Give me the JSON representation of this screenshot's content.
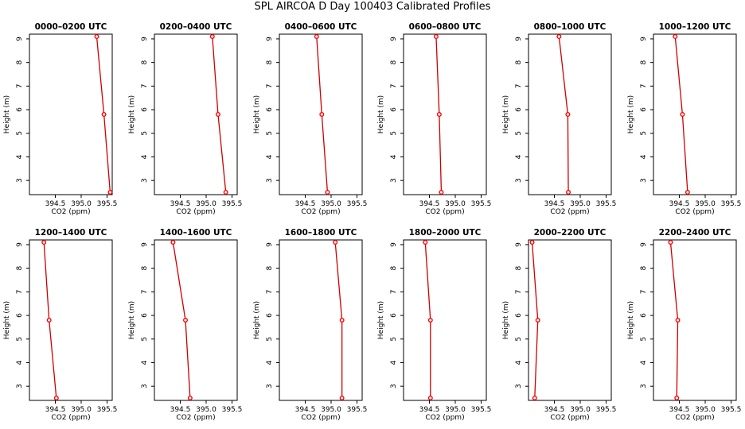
{
  "figure": {
    "title": "SPL AIRCOA D  Day 100403  Calibrated Profiles"
  },
  "colors": {
    "line": "#cc0000",
    "marker": "#ff0000",
    "axis": "#000000"
  },
  "chart_data": [
    {
      "type": "line",
      "title": "0000–0200 UTC",
      "xlabel": "CO2 (ppm)",
      "ylabel": "Height (m)",
      "xlim": [
        394.0,
        395.6
      ],
      "ylim": [
        2.4,
        9.2
      ],
      "xticks": [
        "394.5",
        "395.0",
        "395.5"
      ],
      "yticks": [
        "3",
        "4",
        "5",
        "6",
        "7",
        "8",
        "9"
      ],
      "series": [
        {
          "x": [
            395.3,
            395.44,
            395.56
          ],
          "y": [
            9.1,
            5.8,
            2.5
          ]
        }
      ]
    },
    {
      "type": "line",
      "title": "0200–0400 UTC",
      "xlabel": "CO2 (ppm)",
      "ylabel": "Height (m)",
      "xlim": [
        394.0,
        395.6
      ],
      "ylim": [
        2.4,
        9.2
      ],
      "xticks": [
        "394.5",
        "395.0",
        "395.5"
      ],
      "yticks": [
        "3",
        "4",
        "5",
        "6",
        "7",
        "8",
        "9"
      ],
      "series": [
        {
          "x": [
            395.12,
            395.23,
            395.38
          ],
          "y": [
            9.1,
            5.8,
            2.5
          ]
        }
      ]
    },
    {
      "type": "line",
      "title": "0400–0600 UTC",
      "xlabel": "CO2 (ppm)",
      "ylabel": "Height (m)",
      "xlim": [
        394.0,
        395.6
      ],
      "ylim": [
        2.4,
        9.2
      ],
      "xticks": [
        "394.5",
        "395.0",
        "395.5"
      ],
      "yticks": [
        "3",
        "4",
        "5",
        "6",
        "7",
        "8",
        "9"
      ],
      "series": [
        {
          "x": [
            394.72,
            394.82,
            394.93
          ],
          "y": [
            9.1,
            5.8,
            2.5
          ]
        }
      ]
    },
    {
      "type": "line",
      "title": "0600–0800 UTC",
      "xlabel": "CO2 (ppm)",
      "ylabel": "Height (m)",
      "xlim": [
        394.0,
        395.6
      ],
      "ylim": [
        2.4,
        9.2
      ],
      "xticks": [
        "394.5",
        "395.0",
        "395.5"
      ],
      "yticks": [
        "3",
        "4",
        "5",
        "6",
        "7",
        "8",
        "9"
      ],
      "series": [
        {
          "x": [
            394.63,
            394.69,
            394.73
          ],
          "y": [
            9.1,
            5.8,
            2.5
          ]
        }
      ]
    },
    {
      "type": "line",
      "title": "0800–1000 UTC",
      "xlabel": "CO2 (ppm)",
      "ylabel": "Height (m)",
      "xlim": [
        394.0,
        395.6
      ],
      "ylim": [
        2.4,
        9.2
      ],
      "xticks": [
        "394.5",
        "395.0",
        "395.5"
      ],
      "yticks": [
        "3",
        "4",
        "5",
        "6",
        "7",
        "8",
        "9"
      ],
      "series": [
        {
          "x": [
            394.59,
            394.76,
            394.77
          ],
          "y": [
            9.1,
            5.8,
            2.5
          ]
        }
      ]
    },
    {
      "type": "line",
      "title": "1000–1200 UTC",
      "xlabel": "CO2 (ppm)",
      "ylabel": "Height (m)",
      "xlim": [
        394.0,
        395.6
      ],
      "ylim": [
        2.4,
        9.2
      ],
      "xticks": [
        "394.5",
        "395.0",
        "395.5"
      ],
      "yticks": [
        "3",
        "4",
        "5",
        "6",
        "7",
        "8",
        "9"
      ],
      "series": [
        {
          "x": [
            394.42,
            394.56,
            394.66
          ],
          "y": [
            9.1,
            5.8,
            2.5
          ]
        }
      ]
    },
    {
      "type": "line",
      "title": "1200–1400 UTC",
      "xlabel": "CO2 (ppm)",
      "ylabel": "Height (m)",
      "xlim": [
        394.0,
        395.6
      ],
      "ylim": [
        2.4,
        9.2
      ],
      "xticks": [
        "394.5",
        "395.0",
        "395.5"
      ],
      "yticks": [
        "3",
        "4",
        "5",
        "6",
        "7",
        "8",
        "9"
      ],
      "series": [
        {
          "x": [
            394.28,
            394.38,
            394.52
          ],
          "y": [
            9.1,
            5.8,
            2.5
          ]
        }
      ]
    },
    {
      "type": "line",
      "title": "1400–1600 UTC",
      "xlabel": "CO2 (ppm)",
      "ylabel": "Height (m)",
      "xlim": [
        394.0,
        395.6
      ],
      "ylim": [
        2.4,
        9.2
      ],
      "xticks": [
        "394.5",
        "395.0",
        "395.5"
      ],
      "yticks": [
        "3",
        "4",
        "5",
        "6",
        "7",
        "8",
        "9"
      ],
      "series": [
        {
          "x": [
            394.36,
            394.6,
            394.69
          ],
          "y": [
            9.1,
            5.8,
            2.5
          ]
        }
      ]
    },
    {
      "type": "line",
      "title": "1600–1800 UTC",
      "xlabel": "CO2 (ppm)",
      "ylabel": "Height (m)",
      "xlim": [
        394.0,
        395.6
      ],
      "ylim": [
        2.4,
        9.2
      ],
      "xticks": [
        "394.5",
        "395.0",
        "395.5"
      ],
      "yticks": [
        "3",
        "4",
        "5",
        "6",
        "7",
        "8",
        "9"
      ],
      "series": [
        {
          "x": [
            395.08,
            395.21,
            395.21
          ],
          "y": [
            9.1,
            5.8,
            2.5
          ]
        }
      ]
    },
    {
      "type": "line",
      "title": "1800–2000 UTC",
      "xlabel": "CO2 (ppm)",
      "ylabel": "Height (m)",
      "xlim": [
        394.0,
        395.6
      ],
      "ylim": [
        2.4,
        9.2
      ],
      "xticks": [
        "394.5",
        "395.0",
        "395.5"
      ],
      "yticks": [
        "3",
        "4",
        "5",
        "6",
        "7",
        "8",
        "9"
      ],
      "series": [
        {
          "x": [
            394.42,
            394.52,
            394.52
          ],
          "y": [
            9.1,
            5.8,
            2.5
          ]
        }
      ]
    },
    {
      "type": "line",
      "title": "2000–2200 UTC",
      "xlabel": "CO2 (ppm)",
      "ylabel": "Height (m)",
      "xlim": [
        394.0,
        395.6
      ],
      "ylim": [
        2.4,
        9.2
      ],
      "xticks": [
        "394.5",
        "395.0",
        "395.5"
      ],
      "yticks": [
        "3",
        "4",
        "5",
        "6",
        "7",
        "8",
        "9"
      ],
      "series": [
        {
          "x": [
            394.07,
            394.18,
            394.12
          ],
          "y": [
            9.1,
            5.8,
            2.5
          ]
        }
      ]
    },
    {
      "type": "line",
      "title": "2200–2400 UTC",
      "xlabel": "CO2 (ppm)",
      "ylabel": "Height (m)",
      "xlim": [
        394.0,
        395.6
      ],
      "ylim": [
        2.4,
        9.2
      ],
      "xticks": [
        "394.5",
        "395.0",
        "395.5"
      ],
      "yticks": [
        "3",
        "4",
        "5",
        "6",
        "7",
        "8",
        "9"
      ],
      "series": [
        {
          "x": [
            394.33,
            394.47,
            394.45
          ],
          "y": [
            9.1,
            5.8,
            2.5
          ]
        }
      ]
    }
  ]
}
